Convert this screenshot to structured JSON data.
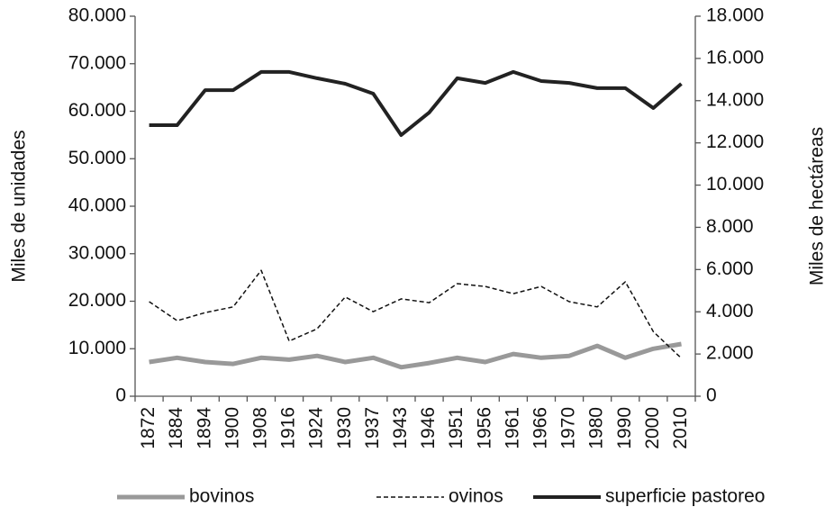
{
  "chart_data": {
    "type": "line",
    "ylabel": "Miles de unidades",
    "y2label": "Miles de hectáreas",
    "categories": [
      "1872",
      "1884",
      "1894",
      "1900",
      "1908",
      "1916",
      "1924",
      "1930",
      "1937",
      "1943",
      "1946",
      "1951",
      "1956",
      "1961",
      "1966",
      "1970",
      "1980",
      "1990",
      "2000",
      "2010"
    ],
    "series": [
      {
        "name": "bovinos",
        "color": "#999999",
        "style": "solid",
        "values": [
          7200,
          8100,
          7200,
          6800,
          8100,
          7700,
          8500,
          7200,
          8100,
          6100,
          7000,
          8100,
          7200,
          8900,
          8100,
          8500,
          10600,
          8100,
          10000,
          11000
        ]
      },
      {
        "name": "ovinos",
        "color": "#111111",
        "style": "dashed",
        "values": [
          19900,
          15900,
          17600,
          18800,
          26500,
          11600,
          14200,
          20900,
          17800,
          20500,
          19700,
          23700,
          23100,
          21600,
          23100,
          19900,
          18800,
          24100,
          13600,
          8000
        ]
      },
      {
        "name": "superficie pastoreo",
        "color": "#222222",
        "style": "solid",
        "axis": "y2",
        "values": [
          12840,
          12840,
          14500,
          14500,
          15360,
          15360,
          15060,
          14800,
          14330,
          12370,
          13440,
          15060,
          14840,
          15360,
          14930,
          14840,
          14590,
          14590,
          13650,
          14800
        ]
      }
    ],
    "ylim": [
      0,
      80000
    ],
    "yticks": [
      0,
      {
        "value": 10000,
        "label": "10.000"
      },
      {
        "value": 20000,
        "label": "20.000"
      },
      {
        "value": 30000,
        "label": "30.000"
      },
      {
        "value": 40000,
        "label": "40.000"
      },
      {
        "value": 50000,
        "label": "50.000"
      },
      {
        "value": 60000,
        "label": "60.000"
      },
      {
        "value": 70000,
        "label": "70.000"
      },
      {
        "value": 80000,
        "label": "80.000"
      }
    ],
    "y2lim": [
      0,
      18000
    ],
    "y2ticks": [
      0,
      {
        "value": 2000,
        "label": "2.000"
      },
      {
        "value": 4000,
        "label": "4.000"
      },
      {
        "value": 6000,
        "label": "6.000"
      },
      {
        "value": 8000,
        "label": "8.000"
      },
      {
        "value": 10000,
        "label": "10.000"
      },
      {
        "value": 12000,
        "label": "12.000"
      },
      {
        "value": 14000,
        "label": "14.000"
      },
      {
        "value": 16000,
        "label": "16.000"
      },
      {
        "value": 18000,
        "label": "18.000"
      }
    ],
    "grid": false,
    "legend": "bottom"
  }
}
